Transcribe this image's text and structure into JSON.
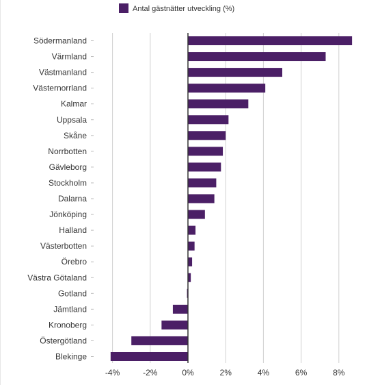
{
  "chart_data": {
    "type": "bar",
    "orientation": "horizontal",
    "legend": {
      "label": "Antal gästnätter utveckling (%)",
      "position": "top"
    },
    "categories": [
      "Södermanland",
      "Värmland",
      "Västmanland",
      "Västernorrland",
      "Kalmar",
      "Uppsala",
      "Skåne",
      "Norrbotten",
      "Gävleborg",
      "Stockholm",
      "Dalarna",
      "Jönköping",
      "Halland",
      "Västerbotten",
      "Örebro",
      "Västra Götaland",
      "Gotland",
      "Jämtland",
      "Kronoberg",
      "Östergötland",
      "Blekinge"
    ],
    "series": [
      {
        "name": "Antal gästnätter utveckling (%)",
        "values": [
          8.7,
          7.3,
          5.0,
          4.1,
          3.2,
          2.15,
          2.0,
          1.85,
          1.75,
          1.5,
          1.4,
          0.9,
          0.4,
          0.35,
          0.22,
          0.15,
          -0.05,
          -0.8,
          -1.4,
          -3.0,
          -4.1
        ]
      }
    ],
    "xlim": [
      -4.6,
      8.7
    ],
    "ticks": [
      -4,
      -2,
      0,
      2,
      4,
      6,
      8
    ],
    "tick_labels": [
      "-4%",
      "-2%",
      "0%",
      "2%",
      "4%",
      "6%",
      "8%"
    ],
    "grid": true,
    "colors": {
      "bar": "#4b1f66",
      "grid": "#d0d0d0",
      "axis": "#333333"
    }
  }
}
